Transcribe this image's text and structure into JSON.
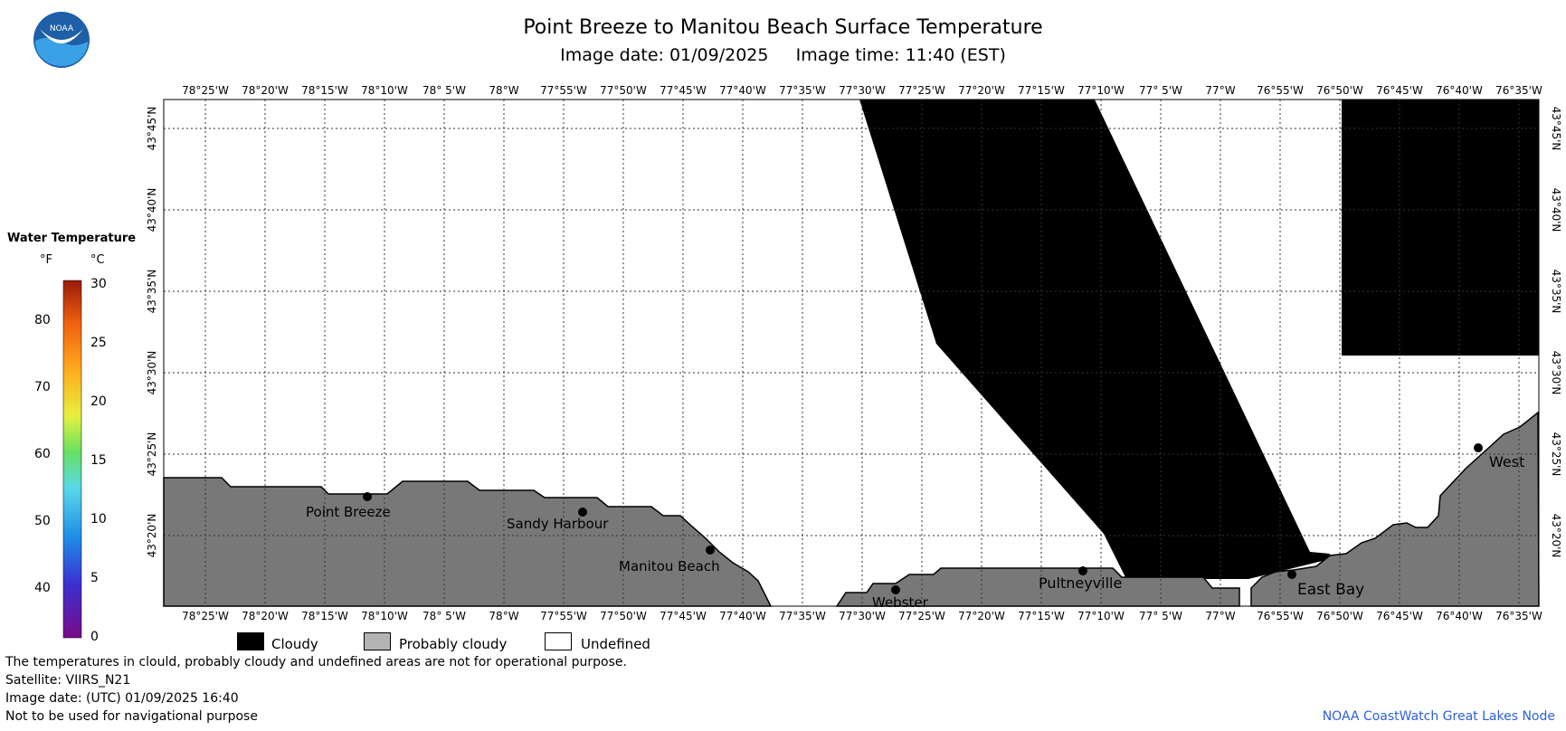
{
  "header": {
    "title": "Point Breeze to Manitou Beach Surface Temperature",
    "subtitle": "Image date: 01/09/2025     Image time: 11:40 (EST)",
    "logo_text": "NOAA"
  },
  "map": {
    "lon_labels": [
      "78°25'W",
      "78°20'W",
      "78°15'W",
      "78°10'W",
      "78° 5'W",
      "78°W",
      "77°55'W",
      "77°50'W",
      "77°45'W",
      "77°40'W",
      "77°35'W",
      "77°30'W",
      "77°25'W",
      "77°20'W",
      "77°15'W",
      "77°10'W",
      "77° 5'W",
      "77°W",
      "76°55'W",
      "76°50'W",
      "76°45'W",
      "76°40'W",
      "76°35'W"
    ],
    "lat_labels": [
      "43°45'N",
      "43°40'N",
      "43°35'N",
      "43°30'N",
      "43°25'N",
      "43°20'N"
    ],
    "places": [
      {
        "name": "Point Breeze"
      },
      {
        "name": "Sandy Harbour"
      },
      {
        "name": "Manitou Beach"
      },
      {
        "name": "Webster"
      },
      {
        "name": "Pultneyville"
      },
      {
        "name": "East Bay"
      },
      {
        "name": "West"
      }
    ],
    "colors": {
      "land": "#787878",
      "cloud": "#000000",
      "undefined": "#ffffff",
      "grid": "#555555"
    }
  },
  "colorbar": {
    "title": "Water Temperature",
    "unit_f": "°F",
    "unit_c": "°C",
    "f_ticks": [
      "80",
      "70",
      "60",
      "50",
      "40"
    ],
    "c_ticks": [
      "30",
      "25",
      "20",
      "15",
      "10",
      "5",
      "0"
    ]
  },
  "legend": {
    "cloudy": "Cloudy",
    "probably_cloudy": "Probably cloudy",
    "undefined": "Undefined"
  },
  "notes": {
    "line1": "The temperatures in clould, probably cloudy and undefined areas are not for operational purpose.",
    "line2": "Satellite: VIIRS_N21",
    "line3": "Image date: (UTC) 01/09/2025  16:40",
    "line4": "Not to be used for navigational purpose"
  },
  "credit": "NOAA CoastWatch Great Lakes Node"
}
